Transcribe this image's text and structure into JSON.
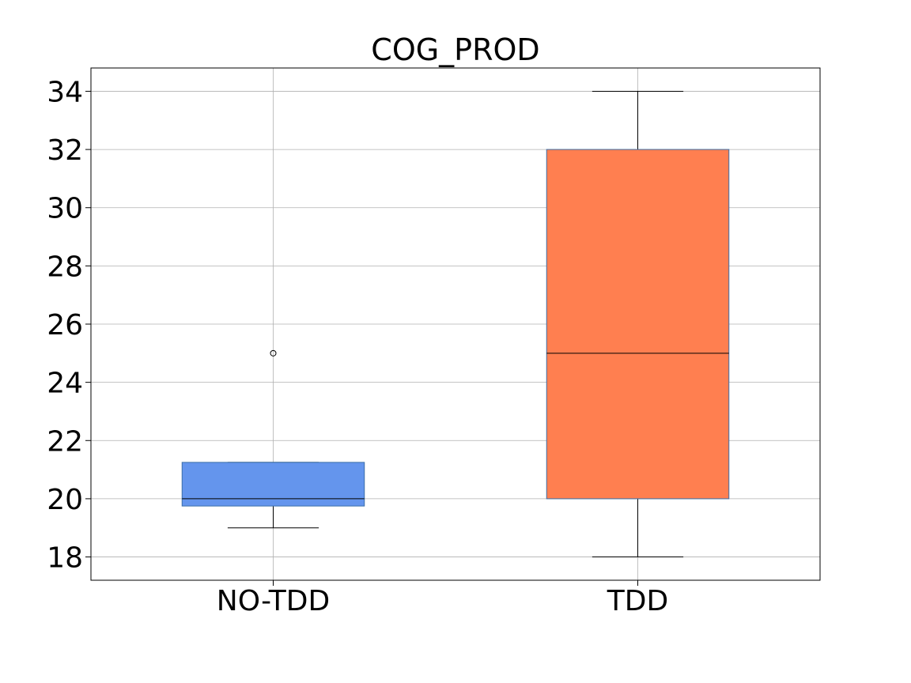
{
  "chart_data": {
    "type": "box",
    "title": "COG_PROD",
    "xlabel": "",
    "ylabel": "",
    "categories": [
      "NO-TDD",
      "TDD"
    ],
    "ylim": [
      17.2,
      34.8
    ],
    "yticks": [
      18,
      20,
      22,
      24,
      26,
      28,
      30,
      32,
      34
    ],
    "grid": true,
    "boxes": [
      {
        "name": "NO-TDD",
        "whisker_low": 19,
        "q1": 19.75,
        "median": 20,
        "q3": 21.25,
        "whisker_high": 21.25,
        "fliers": [
          25
        ],
        "color": "#6495ED"
      },
      {
        "name": "TDD",
        "whisker_low": 18,
        "q1": 20,
        "median": 25,
        "q3": 32,
        "whisker_high": 34,
        "fliers": [],
        "color": "#FF7F50"
      }
    ]
  }
}
